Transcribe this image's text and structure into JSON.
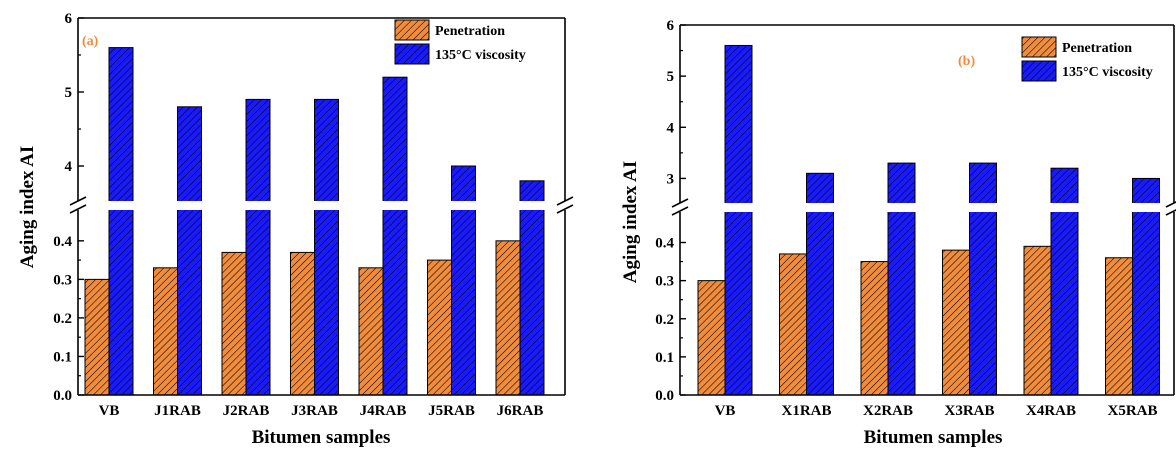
{
  "colors": {
    "penetration": "#f08c3c",
    "viscosity": "#1a1aff",
    "panel_label": "#f08c3c"
  },
  "chart_data": [
    {
      "type": "bar",
      "panel_label": "(a)",
      "xlabel": "Bitumen samples",
      "ylabel": "Aging index AI",
      "axis_break": {
        "lower": [
          0,
          0.48
        ],
        "upper": [
          3.5,
          6
        ]
      },
      "lower_ticks": [
        "0.0",
        "0.1",
        "0.2",
        "0.3",
        "0.4"
      ],
      "upper_ticks": [
        "4",
        "5",
        "6"
      ],
      "categories": [
        "VB",
        "J1RAB",
        "J2RAB",
        "J3RAB",
        "J4RAB",
        "J5RAB",
        "J6RAB"
      ],
      "series": [
        {
          "name": "Penetration",
          "values": [
            0.3,
            0.33,
            0.37,
            0.37,
            0.33,
            0.35,
            0.4
          ]
        },
        {
          "name": "135°C viscosity",
          "values": [
            5.6,
            4.8,
            4.9,
            4.9,
            5.2,
            4.0,
            3.8
          ]
        }
      ],
      "legend_position": "top-right"
    },
    {
      "type": "bar",
      "panel_label": "(b)",
      "xlabel": "Bitumen samples",
      "ylabel": "Aging index AI",
      "axis_break": {
        "lower": [
          0,
          0.48
        ],
        "upper": [
          2.5,
          6
        ]
      },
      "lower_ticks": [
        "0.0",
        "0.1",
        "0.2",
        "0.3",
        "0.4"
      ],
      "upper_ticks": [
        "3",
        "4",
        "5",
        "6"
      ],
      "categories": [
        "VB",
        "X1RAB",
        "X2RAB",
        "X3RAB",
        "X4RAB",
        "X5RAB"
      ],
      "series": [
        {
          "name": "Penetration",
          "values": [
            0.3,
            0.37,
            0.35,
            0.38,
            0.39,
            0.36
          ]
        },
        {
          "name": "135°C viscosity",
          "values": [
            5.6,
            3.1,
            3.3,
            3.3,
            3.2,
            3.0
          ]
        }
      ],
      "legend_position": "top-right"
    }
  ]
}
